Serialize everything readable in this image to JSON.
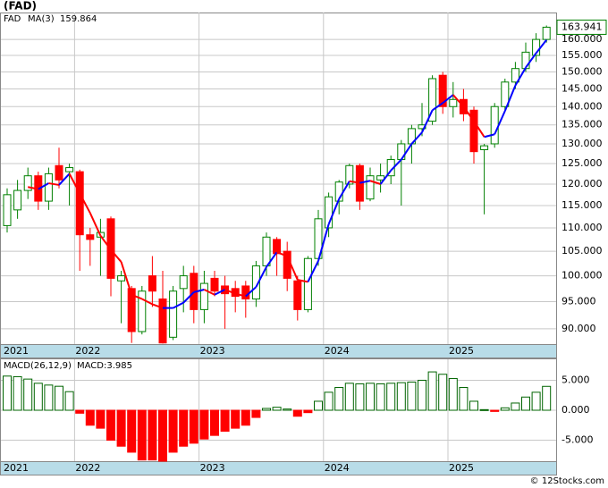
{
  "title": "(FAD)",
  "footer": "© 12Stocks.com",
  "chart_data": [
    {
      "type": "candlestick",
      "name": "FAD",
      "legend_color": "#008000",
      "categories": [
        "2021",
        null,
        null,
        null,
        null,
        null,
        null,
        "2022",
        null,
        null,
        null,
        null,
        null,
        null,
        null,
        null,
        null,
        null,
        null,
        "2023",
        null,
        null,
        null,
        null,
        null,
        null,
        null,
        null,
        null,
        null,
        null,
        "2024",
        null,
        null,
        null,
        null,
        null,
        null,
        null,
        null,
        null,
        null,
        null,
        "2025",
        null,
        null,
        null,
        null,
        null,
        null,
        null,
        null,
        null
      ],
      "open": [
        110.5,
        114,
        118.5,
        122,
        116,
        124.5,
        123,
        123,
        108.5,
        108,
        112,
        99,
        97.5,
        89.5,
        100,
        95.5,
        88.5,
        97.5,
        100.5,
        93.5,
        99.5,
        98,
        97.5,
        98,
        95.5,
        102,
        107.5,
        105,
        99,
        93.5,
        103.5,
        110,
        116,
        120,
        124.5,
        116.5,
        121,
        122,
        126,
        130,
        134,
        136,
        149,
        140,
        142,
        139,
        128.5,
        130,
        140,
        147,
        151,
        155,
        160
      ],
      "high": [
        119,
        121,
        124,
        123,
        124,
        129,
        125,
        123.5,
        110,
        112,
        112.5,
        101,
        98,
        98,
        104,
        101,
        98,
        102,
        102,
        101,
        101,
        100,
        99,
        99,
        103,
        109,
        108,
        107,
        100,
        104,
        114,
        118,
        121,
        125,
        125,
        124,
        125,
        127,
        131,
        135,
        141,
        149,
        150,
        147,
        145,
        140,
        130,
        141,
        148,
        153,
        159,
        162,
        164.5
      ],
      "low": [
        109,
        112,
        116.5,
        114,
        114,
        119,
        115,
        101,
        102,
        100,
        96,
        91,
        87.5,
        89,
        94,
        87.4,
        88,
        93,
        91,
        91,
        96,
        90,
        93,
        92,
        94,
        100,
        100,
        97,
        91.5,
        93,
        102,
        108,
        113,
        119,
        114,
        116,
        118,
        120,
        115,
        125,
        132,
        135,
        138,
        137,
        136,
        125,
        113,
        129,
        139,
        145,
        150,
        153,
        159
      ],
      "close": [
        117.5,
        118.5,
        122,
        116,
        122.5,
        121,
        124,
        108.5,
        107.5,
        109,
        99.5,
        100,
        89.5,
        97,
        97,
        87.5,
        97,
        100,
        93.5,
        98.5,
        97,
        96.5,
        96,
        95.5,
        102,
        108,
        104.5,
        99.5,
        93.5,
        103.5,
        112,
        117,
        120.5,
        124.5,
        116,
        122,
        122,
        126,
        130,
        134,
        135,
        148,
        140,
        142,
        138,
        128,
        129.5,
        140,
        147,
        151,
        156,
        160,
        163.941
      ],
      "up_color": "#008000",
      "down_color": "#ff0000",
      "ma": {
        "name": "MA(3)",
        "rise_color": "#0000ff",
        "fall_color": "#ff0000",
        "values": [
          null,
          null,
          119.3,
          118.8,
          120.2,
          119.8,
          122.5,
          117.8,
          113.3,
          108.3,
          105.3,
          102.8,
          96.3,
          95.5,
          94.5,
          93.8,
          93.8,
          94.8,
          96.8,
          97.3,
          96.3,
          97.3,
          96.5,
          96,
          97.8,
          101.8,
          104.8,
          104,
          99.2,
          98.8,
          103,
          110.8,
          116.5,
          120.7,
          120.3,
          120.8,
          120,
          123.3,
          126,
          130,
          133,
          139,
          141,
          143.3,
          140,
          136,
          131.8,
          132.5,
          138.8,
          146,
          151.3,
          155.7,
          159.864
        ]
      },
      "log_scale": true,
      "ylim": [
        87.3,
        168.8
      ],
      "yticks": [
        {
          "value": 90,
          "label": "90.000"
        },
        {
          "value": 95,
          "label": "95.000"
        },
        {
          "value": 100,
          "label": "100.000"
        },
        {
          "value": 105,
          "label": "105.000"
        },
        {
          "value": 110,
          "label": "110.000"
        },
        {
          "value": 115,
          "label": "115.000"
        },
        {
          "value": 120,
          "label": "120.000"
        },
        {
          "value": 125,
          "label": "125.000"
        },
        {
          "value": 130,
          "label": "130.000"
        },
        {
          "value": 135,
          "label": "135.000"
        },
        {
          "value": 140,
          "label": "140.000"
        },
        {
          "value": 145,
          "label": "145.000"
        },
        {
          "value": 150,
          "label": "150.000"
        },
        {
          "value": 155,
          "label": "155.000"
        },
        {
          "value": 160,
          "label": "160.000"
        }
      ],
      "grid": true
    },
    {
      "type": "bar",
      "name": "MACD(26,12,9)",
      "value_label": "MACD:3.985",
      "categories": [
        "2021",
        null,
        null,
        null,
        null,
        null,
        null,
        "2022",
        null,
        null,
        null,
        null,
        null,
        null,
        null,
        null,
        null,
        null,
        null,
        "2023",
        null,
        null,
        null,
        null,
        null,
        null,
        null,
        null,
        null,
        null,
        null,
        "2024",
        null,
        null,
        null,
        null,
        null,
        null,
        null,
        null,
        null,
        null,
        null,
        "2025",
        null,
        null,
        null,
        null,
        null,
        null,
        null,
        null,
        null
      ],
      "values": [
        5.7,
        5.6,
        5.2,
        4.5,
        4.2,
        4.0,
        3.1,
        -0.5,
        -2.5,
        -3.0,
        -5.0,
        -6.0,
        -7.0,
        -8.3,
        -8.3,
        -8.5,
        -7.0,
        -6.0,
        -5.5,
        -4.8,
        -4.2,
        -3.5,
        -3.0,
        -2.5,
        -1.2,
        0.3,
        0.5,
        0.2,
        -1.0,
        -0.4,
        1.5,
        3.0,
        3.8,
        4.5,
        4.4,
        4.5,
        4.4,
        4.5,
        4.6,
        4.7,
        5.0,
        6.4,
        6.0,
        5.3,
        3.8,
        1.5,
        0.1,
        -0.2,
        0.4,
        1.2,
        2.2,
        3.0,
        3.985
      ],
      "pos_color": "#006400",
      "neg_color": "#ff0000",
      "ylim": [
        -8.5,
        8.5
      ],
      "yticks": [
        {
          "value": 5,
          "label": "5.000"
        },
        {
          "value": 0,
          "label": "0.000"
        },
        {
          "value": -5,
          "label": "-5.000"
        }
      ],
      "grid": true
    }
  ]
}
